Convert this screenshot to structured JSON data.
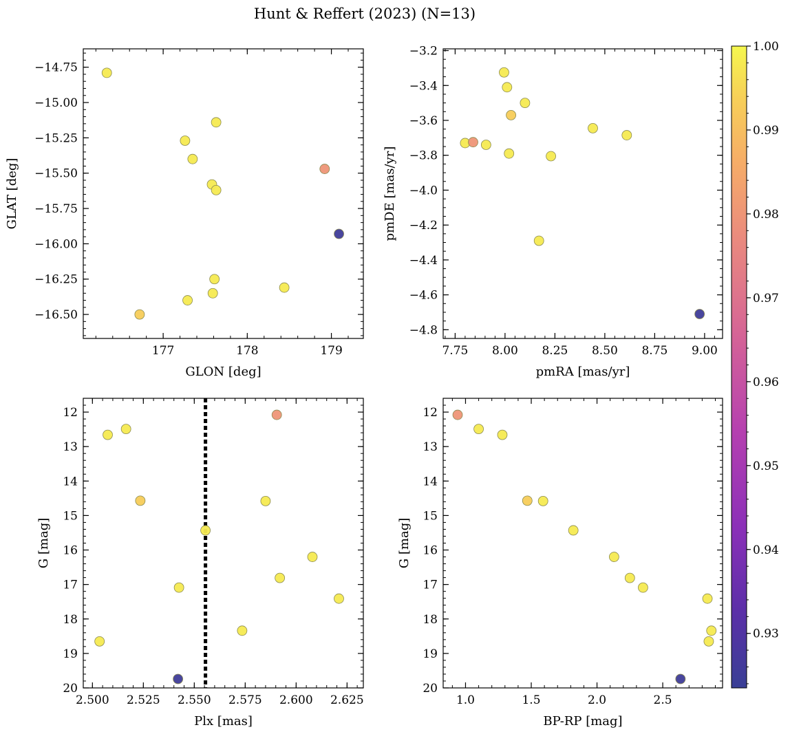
{
  "figure": {
    "title": "Hunt & Reffert (2023) (N=13)"
  },
  "colorbar": {
    "range": [
      0.9235,
      1.0
    ],
    "ticks": [
      0.93,
      0.94,
      0.95,
      0.96,
      0.97,
      0.98,
      0.99,
      1.0
    ],
    "tick_labels": [
      "0.93",
      "0.94",
      "0.95",
      "0.96",
      "0.97",
      "0.98",
      "0.99",
      "1.00"
    ],
    "colormap": "plasma"
  },
  "chart_data": [
    {
      "type": "scatter",
      "name": "glon-glat",
      "xlabel": "GLON [deg]",
      "ylabel": "GLAT [deg]",
      "xlim": [
        176.05,
        179.38
      ],
      "ylim": [
        -16.67,
        -14.62
      ],
      "y_inverted": false,
      "xticks": [
        177,
        178,
        179
      ],
      "xtick_labels": [
        "177",
        "178",
        "179"
      ],
      "yticks": [
        -14.75,
        -15.0,
        -15.25,
        -15.5,
        -15.75,
        -16.0,
        -16.25,
        -16.5
      ],
      "ytick_labels": [
        "−14.75",
        "−15.00",
        "−15.25",
        "−15.50",
        "−15.75",
        "−16.00",
        "−16.25",
        "−16.50"
      ],
      "points": [
        {
          "x": 176.33,
          "y": -14.79,
          "c": 0.998
        },
        {
          "x": 177.63,
          "y": -15.14,
          "c": 0.998
        },
        {
          "x": 177.26,
          "y": -15.27,
          "c": 0.998
        },
        {
          "x": 177.35,
          "y": -15.4,
          "c": 0.998
        },
        {
          "x": 178.92,
          "y": -15.47,
          "c": 0.98
        },
        {
          "x": 177.58,
          "y": -15.58,
          "c": 0.998
        },
        {
          "x": 177.63,
          "y": -15.62,
          "c": 0.998
        },
        {
          "x": 179.09,
          "y": -15.93,
          "c": 0.925
        },
        {
          "x": 177.61,
          "y": -16.25,
          "c": 0.998
        },
        {
          "x": 178.44,
          "y": -16.31,
          "c": 0.998
        },
        {
          "x": 177.59,
          "y": -16.35,
          "c": 0.998
        },
        {
          "x": 177.29,
          "y": -16.4,
          "c": 0.998
        },
        {
          "x": 176.72,
          "y": -16.5,
          "c": 0.993
        }
      ]
    },
    {
      "type": "scatter",
      "name": "pm",
      "xlabel": "pmRA [mas/yr]",
      "ylabel": "pmDE [mas/yr]",
      "xlim": [
        7.69,
        9.09
      ],
      "ylim": [
        -4.85,
        -3.19
      ],
      "y_inverted": false,
      "xticks": [
        7.75,
        8.0,
        8.25,
        8.5,
        8.75,
        9.0
      ],
      "xtick_labels": [
        "7.75",
        "8.00",
        "8.25",
        "8.50",
        "8.75",
        "9.00"
      ],
      "yticks": [
        -3.2,
        -3.4,
        -3.6,
        -3.8,
        -4.0,
        -4.2,
        -4.4,
        -4.6,
        -4.8
      ],
      "ytick_labels": [
        "−3.2",
        "−3.4",
        "−3.6",
        "−3.8",
        "−4.0",
        "−4.2",
        "−4.4",
        "−4.6",
        "−4.8"
      ],
      "points": [
        {
          "x": 7.995,
          "y": -3.325,
          "c": 0.998
        },
        {
          "x": 8.01,
          "y": -3.41,
          "c": 0.998
        },
        {
          "x": 8.1,
          "y": -3.5,
          "c": 0.998
        },
        {
          "x": 8.03,
          "y": -3.57,
          "c": 0.993
        },
        {
          "x": 8.44,
          "y": -3.645,
          "c": 0.998
        },
        {
          "x": 8.61,
          "y": -3.685,
          "c": 0.998
        },
        {
          "x": 7.8,
          "y": -3.73,
          "c": 0.998
        },
        {
          "x": 7.84,
          "y": -3.725,
          "c": 0.98
        },
        {
          "x": 7.905,
          "y": -3.74,
          "c": 0.998
        },
        {
          "x": 8.02,
          "y": -3.79,
          "c": 0.998
        },
        {
          "x": 8.23,
          "y": -3.805,
          "c": 0.998
        },
        {
          "x": 8.17,
          "y": -4.29,
          "c": 0.998
        },
        {
          "x": 8.975,
          "y": -4.71,
          "c": 0.925
        }
      ]
    },
    {
      "type": "scatter",
      "name": "plx-g",
      "xlabel": "Plx [mas]",
      "ylabel": "G [mag]",
      "xlim": [
        2.4955,
        2.633
      ],
      "ylim": [
        20.0,
        11.6
      ],
      "y_inverted": true,
      "vline": 2.5555,
      "xticks": [
        2.5,
        2.525,
        2.55,
        2.575,
        2.6,
        2.625
      ],
      "xtick_labels": [
        "2.500",
        "2.525",
        "2.550",
        "2.575",
        "2.600",
        "2.625"
      ],
      "yticks": [
        12,
        13,
        14,
        15,
        16,
        17,
        18,
        19,
        20
      ],
      "ytick_labels": [
        "12",
        "13",
        "14",
        "15",
        "16",
        "17",
        "18",
        "19",
        "20"
      ],
      "points": [
        {
          "x": 2.5905,
          "y": 12.08,
          "c": 0.98
        },
        {
          "x": 2.5165,
          "y": 12.49,
          "c": 0.998
        },
        {
          "x": 2.5075,
          "y": 12.66,
          "c": 0.998
        },
        {
          "x": 2.5235,
          "y": 14.57,
          "c": 0.993
        },
        {
          "x": 2.585,
          "y": 14.58,
          "c": 0.998
        },
        {
          "x": 2.5555,
          "y": 15.43,
          "c": 0.998
        },
        {
          "x": 2.608,
          "y": 16.2,
          "c": 0.998
        },
        {
          "x": 2.592,
          "y": 16.81,
          "c": 0.998
        },
        {
          "x": 2.5425,
          "y": 17.09,
          "c": 0.998
        },
        {
          "x": 2.621,
          "y": 17.41,
          "c": 0.998
        },
        {
          "x": 2.5735,
          "y": 18.34,
          "c": 0.998
        },
        {
          "x": 2.5035,
          "y": 18.65,
          "c": 0.998
        },
        {
          "x": 2.542,
          "y": 19.74,
          "c": 0.925
        }
      ]
    },
    {
      "type": "scatter",
      "name": "cmd",
      "xlabel": "BP-RP [mag]",
      "ylabel": "G [mag]",
      "xlim": [
        0.83,
        2.955
      ],
      "ylim": [
        20.0,
        11.6
      ],
      "y_inverted": true,
      "xticks": [
        1.0,
        1.5,
        2.0,
        2.5
      ],
      "xtick_labels": [
        "1.0",
        "1.5",
        "2.0",
        "2.5"
      ],
      "yticks": [
        12,
        13,
        14,
        15,
        16,
        17,
        18,
        19,
        20
      ],
      "ytick_labels": [
        "12",
        "13",
        "14",
        "15",
        "16",
        "17",
        "18",
        "19",
        "20"
      ],
      "points": [
        {
          "x": 0.94,
          "y": 12.08,
          "c": 0.98
        },
        {
          "x": 1.1,
          "y": 12.49,
          "c": 0.998
        },
        {
          "x": 1.28,
          "y": 12.66,
          "c": 0.998
        },
        {
          "x": 1.47,
          "y": 14.57,
          "c": 0.993
        },
        {
          "x": 1.59,
          "y": 14.58,
          "c": 0.998
        },
        {
          "x": 1.82,
          "y": 15.43,
          "c": 0.998
        },
        {
          "x": 2.13,
          "y": 16.2,
          "c": 0.998
        },
        {
          "x": 2.25,
          "y": 16.81,
          "c": 0.998
        },
        {
          "x": 2.35,
          "y": 17.09,
          "c": 0.998
        },
        {
          "x": 2.84,
          "y": 17.41,
          "c": 0.998
        },
        {
          "x": 2.87,
          "y": 18.34,
          "c": 0.998
        },
        {
          "x": 2.85,
          "y": 18.65,
          "c": 0.998
        },
        {
          "x": 2.635,
          "y": 19.74,
          "c": 0.925
        }
      ]
    }
  ]
}
